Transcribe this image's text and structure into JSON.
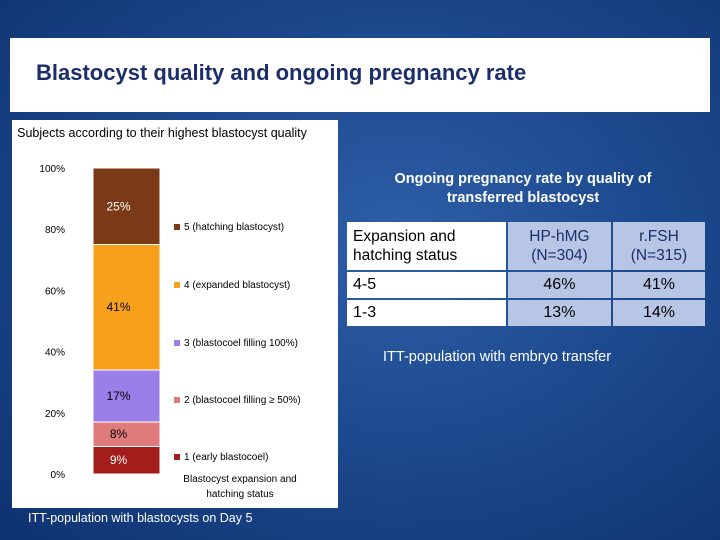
{
  "slide": {
    "title": "Blastocyst quality and ongoing pregnancy rate"
  },
  "chart_data": {
    "type": "bar",
    "stacked": true,
    "title": "Subjects according to their highest blastocyst quality",
    "xlabel": "Blastocyst expansion and hatching status",
    "ylabel": "",
    "ylim": [
      0,
      100
    ],
    "yticks": [
      "0%",
      "20%",
      "40%",
      "60%",
      "80%",
      "100%"
    ],
    "series": [
      {
        "name": "1  (early blastocoel)",
        "value": 9,
        "label": "9%",
        "color": "#a31d1d"
      },
      {
        "name": "2  (blastocoel filling ≥ 50%)",
        "value": 8,
        "label": "8%",
        "color": "#e07b7b"
      },
      {
        "name": "3  (blastocoel filling 100%)",
        "value": 17,
        "label": "17%",
        "color": "#9b7fe8"
      },
      {
        "name": "4  (expanded blastocyst)",
        "value": 41,
        "label": "41%",
        "color": "#f7a01c"
      },
      {
        "name": "5  (hatching blastocyst)",
        "value": 25,
        "label": "25%",
        "color": "#7b3a17"
      }
    ],
    "footnote": "ITT-population with blastocysts on Day 5"
  },
  "pregnancy": {
    "heading": "Ongoing pregnancy rate by quality of transferred blastocyst",
    "columns": [
      "Expansion and hatching status",
      "HP-hMG (N=304)",
      "r.FSH (N=315)"
    ],
    "rows": [
      {
        "status": "4-5",
        "hphmg": "46%",
        "rfsh": "41%"
      },
      {
        "status": "1-3",
        "hphmg": "13%",
        "rfsh": "14%"
      }
    ],
    "note": "ITT-population with embryo transfer"
  }
}
